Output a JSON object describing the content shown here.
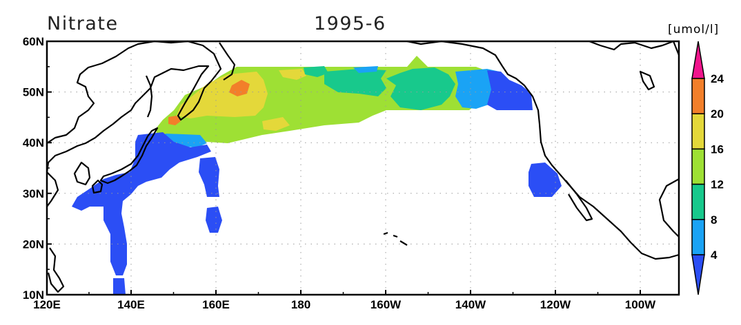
{
  "title_left": "Nitrate",
  "title_center": "1995-6",
  "unit_label": "[umol/l]",
  "x_ticks": [
    "120E",
    "140E",
    "160E",
    "180",
    "160W",
    "140W",
    "120W",
    "100W"
  ],
  "y_ticks": [
    "60N",
    "50N",
    "40N",
    "30N",
    "20N",
    "10N"
  ],
  "colorbar": {
    "labels": [
      "4",
      "8",
      "12",
      "16",
      "20",
      "24"
    ],
    "colors": [
      "#2b4ef5",
      "#1aa3f5",
      "#18c98c",
      "#9ee034",
      "#e4d83a",
      "#f27f2a",
      "#f0148c"
    ]
  },
  "chart_data": {
    "type": "heatmap",
    "title": "Nitrate",
    "subtitle": "1995-6",
    "variable_unit": "[umol/l]",
    "region": {
      "lon_range": [
        "120E",
        "90W"
      ],
      "lat_range": [
        "10N",
        "60N"
      ]
    },
    "levels": [
      4,
      8,
      12,
      16,
      20,
      24
    ],
    "colors": [
      "#2b4ef5",
      "#1aa3f5",
      "#18c98c",
      "#9ee034",
      "#e4d83a",
      "#f27f2a",
      "#f0148c"
    ],
    "regions": [
      {
        "area": "subarctic North Pacific (150E-145W, 44-55N)",
        "range": "12-16",
        "note": "dominant yellow-green"
      },
      {
        "area": "western subarctic near Kuril/Kamchatka (160-165E, 50-52N)",
        "range": "20-24",
        "note": "orange patch"
      },
      {
        "area": "off northern Japan (150E, 44N)",
        "range": "20-24",
        "note": "orange spot"
      },
      {
        "area": "Gulf of Alaska (140-125W, 45-55N)",
        "range": "<8"
      },
      {
        "area": "Kuroshio region / south of Japan (130-145E, 10-42N)",
        "range": "<4"
      },
      {
        "area": "around 160E, 22-37N",
        "range": "<4"
      },
      {
        "area": "off California (125-120W, 29-35N)",
        "range": "<4"
      }
    ],
    "grid": "dotted"
  }
}
